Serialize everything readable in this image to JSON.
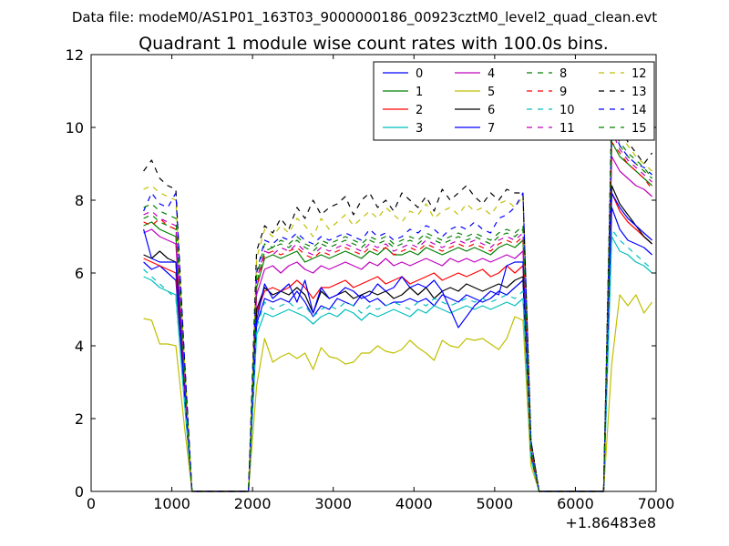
{
  "header": "Data file: modeM0/AS1P01_163T03_9000000186_00923cztM0_level2_quad_clean.evt",
  "chart_data": {
    "type": "line",
    "title": "Quadrant 1 module wise count rates with 100.0s bins.",
    "xlabel": "",
    "ylabel": "",
    "x_offset_label": "+1.86483e8",
    "xlim": [
      0,
      7000
    ],
    "ylim": [
      0,
      12
    ],
    "xticks": [
      0,
      1000,
      2000,
      3000,
      4000,
      5000,
      6000,
      7000
    ],
    "yticks": [
      0,
      2,
      4,
      6,
      8,
      10,
      12
    ],
    "grid": false,
    "legend": {
      "placement": "top-right",
      "columns": 4
    },
    "x": [
      650,
      750,
      850,
      950,
      1050,
      1150,
      1250,
      1350,
      1450,
      1550,
      1650,
      1750,
      1850,
      1950,
      2050,
      2150,
      2250,
      2350,
      2450,
      2550,
      2650,
      2750,
      2850,
      2950,
      3050,
      3150,
      3250,
      3350,
      3450,
      3550,
      3650,
      3750,
      3850,
      3950,
      4050,
      4150,
      4250,
      4350,
      4450,
      4550,
      4650,
      4750,
      4850,
      4950,
      5050,
      5150,
      5250,
      5350,
      5450,
      5550,
      5650,
      5750,
      5850,
      5950,
      6050,
      6150,
      6250,
      6350,
      6450,
      6550,
      6650,
      6750,
      6850,
      6950
    ],
    "series": [
      {
        "name": "0",
        "color": "#0000ff",
        "dash": "solid",
        "values": [
          6.3,
          6.1,
          6.2,
          6.0,
          5.8,
          2.8,
          0,
          0,
          0,
          0,
          0,
          0,
          0,
          0,
          4.6,
          5.3,
          5.2,
          5.3,
          5.2,
          5.5,
          5.2,
          4.8,
          5.1,
          5.0,
          5.3,
          5.2,
          5.1,
          5.4,
          5.2,
          5.3,
          5.1,
          5.2,
          5.2,
          5.3,
          5.2,
          5.3,
          5.1,
          5.4,
          5.3,
          5.2,
          5.4,
          5.3,
          5.2,
          5.3,
          5.5,
          5.4,
          5.6,
          5.8,
          1.0,
          0,
          0,
          0,
          0,
          0,
          0,
          0,
          0,
          0,
          7.8,
          7.2,
          6.9,
          6.8,
          6.7,
          6.5
        ]
      },
      {
        "name": "1",
        "color": "#008000",
        "dash": "solid",
        "values": [
          7.3,
          7.4,
          7.2,
          7.1,
          7.0,
          3.3,
          0,
          0,
          0,
          0,
          0,
          0,
          0,
          0,
          5.6,
          6.4,
          6.5,
          6.4,
          6.5,
          6.6,
          6.3,
          6.4,
          6.5,
          6.4,
          6.5,
          6.6,
          6.5,
          6.4,
          6.6,
          6.5,
          6.7,
          6.5,
          6.5,
          6.6,
          6.5,
          6.7,
          6.6,
          6.5,
          6.6,
          6.7,
          6.6,
          6.7,
          6.6,
          6.5,
          6.7,
          6.8,
          6.7,
          6.9,
          1.1,
          0,
          0,
          0,
          0,
          0,
          0,
          0,
          0,
          0,
          9.6,
          9.2,
          9.0,
          8.8,
          8.6,
          8.4
        ]
      },
      {
        "name": "2",
        "color": "#ff0000",
        "dash": "solid",
        "values": [
          6.4,
          6.3,
          6.2,
          6.1,
          6.0,
          2.9,
          0,
          0,
          0,
          0,
          0,
          0,
          0,
          0,
          4.9,
          5.5,
          5.6,
          5.5,
          5.6,
          5.8,
          5.6,
          5.3,
          5.6,
          5.6,
          5.7,
          5.8,
          5.6,
          5.7,
          5.8,
          5.9,
          5.7,
          5.8,
          5.9,
          5.7,
          5.8,
          5.9,
          6.0,
          5.8,
          5.9,
          6.0,
          5.9,
          6.0,
          6.1,
          5.9,
          6.0,
          6.2,
          6.0,
          6.2,
          1.0,
          0,
          0,
          0,
          0,
          0,
          0,
          0,
          0,
          0,
          8.2,
          7.7,
          7.4,
          7.2,
          7.0,
          6.8
        ]
      },
      {
        "name": "3",
        "color": "#00bfbf",
        "dash": "solid",
        "values": [
          5.9,
          5.8,
          5.6,
          5.5,
          5.4,
          2.6,
          0,
          0,
          0,
          0,
          0,
          0,
          0,
          0,
          4.3,
          4.9,
          4.8,
          4.9,
          5.0,
          4.9,
          4.8,
          4.6,
          4.8,
          4.9,
          4.8,
          5.0,
          4.9,
          4.7,
          4.9,
          4.8,
          4.9,
          5.0,
          4.9,
          4.8,
          5.0,
          4.9,
          5.1,
          5.0,
          4.9,
          5.0,
          5.1,
          5.0,
          5.1,
          5.0,
          5.1,
          5.2,
          5.1,
          5.3,
          0.9,
          0,
          0,
          0,
          0,
          0,
          0,
          0,
          0,
          0,
          7.0,
          6.6,
          6.5,
          6.3,
          6.2,
          6.0
        ]
      },
      {
        "name": "4",
        "color": "#bf00bf",
        "dash": "solid",
        "values": [
          7.1,
          7.2,
          7.0,
          6.9,
          6.8,
          3.2,
          0,
          0,
          0,
          0,
          0,
          0,
          0,
          0,
          5.4,
          6.1,
          6.2,
          6.0,
          6.2,
          6.3,
          6.1,
          6.0,
          6.2,
          6.1,
          6.2,
          6.3,
          6.2,
          6.1,
          6.3,
          6.2,
          6.4,
          6.2,
          6.3,
          6.2,
          6.3,
          6.4,
          6.3,
          6.2,
          6.4,
          6.3,
          6.4,
          6.3,
          6.4,
          6.3,
          6.4,
          6.5,
          6.4,
          6.6,
          1.1,
          0,
          0,
          0,
          0,
          0,
          0,
          0,
          0,
          0,
          9.2,
          8.8,
          8.6,
          8.4,
          8.3,
          8.1
        ]
      },
      {
        "name": "5",
        "color": "#bfbf00",
        "dash": "solid",
        "values": [
          4.75,
          4.7,
          4.05,
          4.05,
          4.0,
          1.9,
          0,
          0,
          0,
          0,
          0,
          0,
          0,
          0,
          2.9,
          4.2,
          3.55,
          3.7,
          3.8,
          3.65,
          3.8,
          3.35,
          3.95,
          3.7,
          3.65,
          3.5,
          3.55,
          3.8,
          3.8,
          4.0,
          3.85,
          3.8,
          3.9,
          4.15,
          3.95,
          3.8,
          3.6,
          4.15,
          4.0,
          3.95,
          4.2,
          4.15,
          4.2,
          4.05,
          3.9,
          4.2,
          4.8,
          4.7,
          0.7,
          0,
          0,
          0,
          0,
          0,
          0,
          0,
          0,
          0,
          3.5,
          5.4,
          5.1,
          5.4,
          4.9,
          5.2
        ]
      },
      {
        "name": "6",
        "color": "#000000",
        "dash": "solid",
        "values": [
          6.5,
          6.4,
          6.6,
          6.4,
          6.3,
          3.0,
          0,
          0,
          0,
          0,
          0,
          0,
          0,
          0,
          5.0,
          5.6,
          5.4,
          5.5,
          5.4,
          5.6,
          5.4,
          4.9,
          5.5,
          5.3,
          5.4,
          5.5,
          5.3,
          5.4,
          5.5,
          5.4,
          5.5,
          5.3,
          5.4,
          5.6,
          5.4,
          5.6,
          5.3,
          5.5,
          5.6,
          5.5,
          5.7,
          5.6,
          5.5,
          5.6,
          5.7,
          5.6,
          5.8,
          5.9,
          1.0,
          0,
          0,
          0,
          0,
          0,
          0,
          0,
          0,
          0,
          8.4,
          7.9,
          7.6,
          7.3,
          7.0,
          6.8
        ]
      },
      {
        "name": "7",
        "color": "#0000ff",
        "dash": "solid",
        "values": [
          7.2,
          6.4,
          6.3,
          6.3,
          6.3,
          2.9,
          0,
          0,
          0,
          0,
          0,
          0,
          0,
          0,
          4.7,
          5.7,
          5.3,
          5.5,
          5.7,
          5.2,
          5.8,
          4.9,
          5.6,
          5.3,
          5.4,
          5.6,
          5.5,
          5.3,
          5.4,
          5.7,
          5.5,
          5.6,
          5.9,
          5.6,
          5.7,
          5.6,
          5.8,
          5.5,
          5.0,
          4.5,
          4.8,
          5.1,
          5.3,
          5.5,
          5.4,
          6.2,
          6.3,
          6.3,
          1.0,
          0,
          0,
          0,
          0,
          0,
          0,
          0,
          0,
          0,
          8.2,
          7.8,
          7.5,
          7.3,
          7.1,
          6.9
        ]
      },
      {
        "name": "8",
        "color": "#008000",
        "dash": "dashed",
        "values": [
          7.5,
          7.6,
          7.4,
          7.3,
          7.2,
          3.4,
          0,
          0,
          0,
          0,
          0,
          0,
          0,
          0,
          5.7,
          6.6,
          6.7,
          6.8,
          6.7,
          6.9,
          6.7,
          6.6,
          6.8,
          6.7,
          6.8,
          6.9,
          6.8,
          6.7,
          6.9,
          6.8,
          6.9,
          6.7,
          6.8,
          6.9,
          6.8,
          7.0,
          6.9,
          6.8,
          6.9,
          7.0,
          6.9,
          7.0,
          6.9,
          6.8,
          7.0,
          7.1,
          7.0,
          7.2,
          1.2,
          0,
          0,
          0,
          0,
          0,
          0,
          0,
          0,
          0,
          9.8,
          9.5,
          9.2,
          9.0,
          8.8,
          8.6
        ]
      },
      {
        "name": "9",
        "color": "#ff0000",
        "dash": "dashed",
        "values": [
          7.4,
          7.3,
          7.5,
          7.3,
          7.2,
          3.3,
          0,
          0,
          0,
          0,
          0,
          0,
          0,
          0,
          5.6,
          6.5,
          6.6,
          6.5,
          6.6,
          6.7,
          6.5,
          6.4,
          6.6,
          6.5,
          6.6,
          6.7,
          6.6,
          6.5,
          6.7,
          6.6,
          6.7,
          6.5,
          6.6,
          6.7,
          6.6,
          6.8,
          6.7,
          6.6,
          6.7,
          6.8,
          6.7,
          6.8,
          6.7,
          6.6,
          6.8,
          6.9,
          6.8,
          7.0,
          1.1,
          0,
          0,
          0,
          0,
          0,
          0,
          0,
          0,
          0,
          9.6,
          9.3,
          9.0,
          8.8,
          8.6,
          8.3
        ]
      },
      {
        "name": "10",
        "color": "#00bfbf",
        "dash": "dashed",
        "values": [
          6.1,
          5.9,
          5.7,
          5.5,
          5.3,
          2.7,
          0,
          0,
          0,
          0,
          0,
          0,
          0,
          0,
          4.5,
          5.2,
          5.0,
          5.1,
          5.2,
          5.0,
          5.1,
          4.8,
          5.0,
          5.1,
          5.0,
          5.2,
          5.1,
          4.9,
          5.1,
          5.0,
          5.1,
          5.2,
          5.1,
          5.0,
          5.2,
          5.1,
          5.3,
          5.2,
          5.1,
          5.2,
          5.3,
          5.2,
          5.3,
          5.2,
          5.3,
          5.4,
          5.3,
          5.5,
          0.9,
          0,
          0,
          0,
          0,
          0,
          0,
          0,
          0,
          0,
          7.2,
          6.9,
          6.7,
          6.5,
          6.3,
          6.1
        ]
      },
      {
        "name": "11",
        "color": "#bf00bf",
        "dash": "dashed",
        "values": [
          7.6,
          7.7,
          7.5,
          7.4,
          7.3,
          3.4,
          0,
          0,
          0,
          0,
          0,
          0,
          0,
          0,
          5.8,
          6.6,
          6.5,
          6.7,
          6.6,
          6.8,
          6.6,
          6.5,
          6.7,
          6.6,
          6.7,
          6.8,
          6.7,
          6.6,
          6.8,
          6.7,
          6.8,
          6.6,
          6.7,
          6.8,
          6.7,
          6.9,
          6.8,
          6.7,
          6.8,
          6.9,
          6.8,
          6.9,
          6.8,
          6.7,
          6.9,
          7.0,
          6.9,
          7.1,
          1.2,
          0,
          0,
          0,
          0,
          0,
          0,
          0,
          0,
          0,
          9.9,
          9.4,
          9.1,
          8.9,
          8.7,
          8.5
        ]
      },
      {
        "name": "12",
        "color": "#bfbf00",
        "dash": "dashed",
        "values": [
          8.3,
          8.4,
          8.2,
          8.1,
          8.0,
          3.8,
          0,
          0,
          0,
          0,
          0,
          0,
          0,
          0,
          6.4,
          7.2,
          7.0,
          7.3,
          7.1,
          7.5,
          7.3,
          7.0,
          7.5,
          7.2,
          7.4,
          7.6,
          7.3,
          7.5,
          7.7,
          7.5,
          7.8,
          7.6,
          7.4,
          7.7,
          7.6,
          7.9,
          7.5,
          7.7,
          7.8,
          7.6,
          7.9,
          7.7,
          7.8,
          7.6,
          7.9,
          8.0,
          7.8,
          8.1,
          1.4,
          0,
          0,
          0,
          0,
          0,
          0,
          0,
          0,
          0,
          10.3,
          9.8,
          9.5,
          9.2,
          9.0,
          8.8
        ]
      },
      {
        "name": "13",
        "color": "#000000",
        "dash": "dashed",
        "values": [
          8.8,
          9.1,
          8.6,
          8.4,
          8.3,
          3.9,
          0,
          0,
          0,
          0,
          0,
          0,
          0,
          0,
          6.6,
          7.3,
          7.1,
          7.5,
          7.2,
          7.8,
          7.5,
          8.0,
          7.6,
          7.8,
          7.9,
          8.1,
          7.6,
          8.0,
          8.2,
          7.8,
          8.0,
          7.7,
          8.2,
          8.0,
          7.8,
          8.1,
          7.7,
          8.3,
          8.0,
          8.2,
          8.4,
          8.1,
          7.9,
          8.2,
          8.0,
          8.3,
          8.2,
          8.2,
          1.4,
          0,
          0,
          0,
          0,
          0,
          0,
          0,
          0,
          0,
          10.5,
          10.0,
          9.6,
          9.3,
          9.0,
          9.3
        ]
      },
      {
        "name": "14",
        "color": "#0000ff",
        "dash": "dashed",
        "values": [
          7.7,
          8.2,
          7.9,
          7.8,
          8.2,
          3.9,
          0,
          0,
          0,
          0,
          0,
          0,
          0,
          0,
          6.0,
          6.9,
          6.8,
          7.0,
          6.9,
          7.1,
          6.9,
          6.8,
          7.0,
          6.9,
          7.0,
          7.1,
          7.0,
          6.9,
          7.2,
          7.0,
          7.1,
          6.9,
          7.0,
          7.2,
          7.1,
          7.3,
          7.2,
          7.0,
          7.2,
          7.3,
          7.2,
          7.4,
          7.2,
          7.1,
          7.5,
          7.6,
          7.8,
          8.2,
          1.4,
          0,
          0,
          0,
          0,
          0,
          0,
          0,
          0,
          0,
          10.1,
          9.5,
          9.2,
          9.0,
          8.9,
          8.7
        ]
      },
      {
        "name": "15",
        "color": "#008000",
        "dash": "dashed",
        "values": [
          7.8,
          7.9,
          7.7,
          7.6,
          7.5,
          3.5,
          0,
          0,
          0,
          0,
          0,
          0,
          0,
          0,
          5.9,
          6.8,
          6.7,
          6.9,
          6.8,
          7.0,
          6.8,
          6.7,
          6.9,
          6.8,
          6.9,
          7.0,
          6.9,
          6.8,
          7.0,
          6.9,
          7.0,
          6.8,
          6.9,
          7.0,
          6.9,
          7.1,
          7.0,
          6.9,
          7.0,
          7.1,
          7.0,
          7.1,
          7.0,
          6.9,
          7.1,
          7.2,
          7.1,
          7.3,
          1.2,
          0,
          0,
          0,
          0,
          0,
          0,
          0,
          0,
          0,
          9.9,
          9.6,
          9.3,
          9.1,
          8.9,
          8.6
        ]
      }
    ]
  }
}
